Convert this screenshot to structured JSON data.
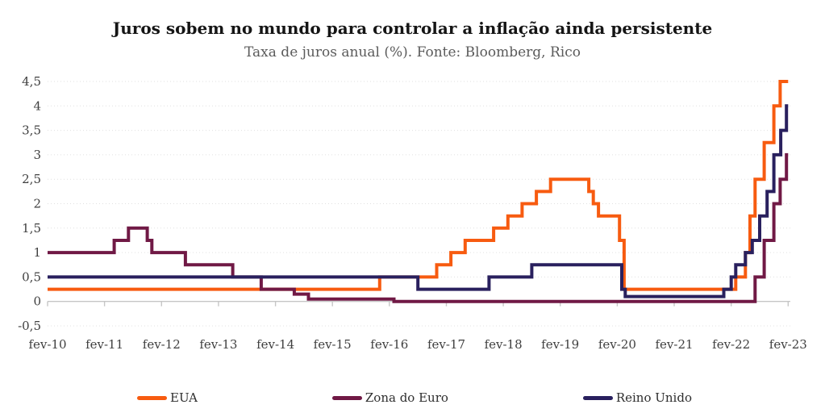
{
  "header": {
    "title": "Juros sobem no mundo para controlar a inflação ainda persistente",
    "subtitle": "Taxa de juros anual (%). Fonte: Bloomberg, Rico"
  },
  "chart_data": {
    "type": "line",
    "step": true,
    "title": "Juros sobem no mundo para controlar a inflação ainda persistente",
    "subtitle": "Taxa de juros anual (%). Fonte: Bloomberg, Rico",
    "ylabel": "Taxa de juros anual (%)",
    "xlabel": "",
    "grid": "dotted horizontal gridlines, solid zero axis with year ticks",
    "legend_position": "bottom",
    "x_axis": {
      "min": 0,
      "max": 13,
      "unit": "years since fev-10",
      "ticks": [
        {
          "t": 0,
          "label": "fev-10"
        },
        {
          "t": 1,
          "label": "fev-11"
        },
        {
          "t": 2,
          "label": "fev-12"
        },
        {
          "t": 3,
          "label": "fev-13"
        },
        {
          "t": 4,
          "label": "fev-14"
        },
        {
          "t": 5,
          "label": "fev-15"
        },
        {
          "t": 6,
          "label": "fev-16"
        },
        {
          "t": 7,
          "label": "fev-17"
        },
        {
          "t": 8,
          "label": "fev-18"
        },
        {
          "t": 9,
          "label": "fev-19"
        },
        {
          "t": 10,
          "label": "fev-20"
        },
        {
          "t": 11,
          "label": "fev-21"
        },
        {
          "t": 12,
          "label": "fev-22"
        },
        {
          "t": 13,
          "label": "fev-23"
        }
      ]
    },
    "y_axis": {
      "min": -0.5,
      "max": 4.5,
      "ticks": [
        {
          "v": 4.5,
          "label": "4,5"
        },
        {
          "v": 4,
          "label": "4"
        },
        {
          "v": 3.5,
          "label": "3,5"
        },
        {
          "v": 3,
          "label": "3"
        },
        {
          "v": 2.5,
          "label": "2,5"
        },
        {
          "v": 2,
          "label": "2"
        },
        {
          "v": 1.5,
          "label": "1,5"
        },
        {
          "v": 1,
          "label": "1"
        },
        {
          "v": 0.5,
          "label": "0,5"
        },
        {
          "v": 0,
          "label": "0"
        },
        {
          "v": -0.5,
          "label": "-0,5"
        }
      ]
    },
    "series": [
      {
        "name": "EUA",
        "color": "#f75b10",
        "end": 13,
        "points": [
          [
            0,
            0.25
          ],
          [
            5.83,
            0.5
          ],
          [
            6.83,
            0.75
          ],
          [
            7.08,
            1
          ],
          [
            7.33,
            1.25
          ],
          [
            7.83,
            1.5
          ],
          [
            8.08,
            1.75
          ],
          [
            8.33,
            2
          ],
          [
            8.58,
            2.25
          ],
          [
            8.83,
            2.5
          ],
          [
            9.5,
            2.25
          ],
          [
            9.58,
            2
          ],
          [
            9.67,
            1.75
          ],
          [
            10.04,
            1.25
          ],
          [
            10.12,
            0.25
          ],
          [
            12.08,
            0.5
          ],
          [
            12.25,
            1
          ],
          [
            12.33,
            1.75
          ],
          [
            12.42,
            2.5
          ],
          [
            12.58,
            3.25
          ],
          [
            12.75,
            4
          ],
          [
            12.86,
            4.5
          ]
        ]
      },
      {
        "name": "Zona do Euro",
        "color": "#701945",
        "end": 13,
        "points": [
          [
            0,
            1
          ],
          [
            1.17,
            1.25
          ],
          [
            1.42,
            1.5
          ],
          [
            1.75,
            1.25
          ],
          [
            1.83,
            1
          ],
          [
            2.42,
            0.75
          ],
          [
            3.25,
            0.5
          ],
          [
            3.75,
            0.25
          ],
          [
            4.33,
            0.15
          ],
          [
            4.58,
            0.05
          ],
          [
            6.08,
            0
          ],
          [
            12.42,
            0.5
          ],
          [
            12.58,
            1.25
          ],
          [
            12.75,
            2
          ],
          [
            12.86,
            2.5
          ],
          [
            12.97,
            3
          ]
        ]
      },
      {
        "name": "Reino Unido",
        "color": "#29205e",
        "end": 13,
        "points": [
          [
            0,
            0.5
          ],
          [
            6.5,
            0.25
          ],
          [
            7.75,
            0.5
          ],
          [
            8.5,
            0.75
          ],
          [
            10.08,
            0.25
          ],
          [
            10.14,
            0.1
          ],
          [
            11.87,
            0.25
          ],
          [
            12,
            0.5
          ],
          [
            12.08,
            0.75
          ],
          [
            12.25,
            1
          ],
          [
            12.37,
            1.25
          ],
          [
            12.5,
            1.75
          ],
          [
            12.63,
            2.25
          ],
          [
            12.75,
            3
          ],
          [
            12.87,
            3.5
          ],
          [
            12.97,
            4
          ]
        ]
      }
    ]
  },
  "legend": {
    "items": [
      {
        "label": "EUA"
      },
      {
        "label": "Zona do Euro"
      },
      {
        "label": "Reino Unido"
      }
    ]
  }
}
